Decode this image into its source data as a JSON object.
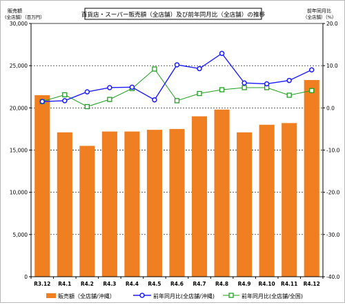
{
  "chart_data": {
    "type": "bar+line",
    "title": "百貨店・スーパー販売額（全店舗）及び前年同月比（全店舗）の推移",
    "left_axis_label_line1": "販売額",
    "left_axis_label_line2": "(全店舗）（百万円）",
    "right_axis_label_line1": "前年同月比",
    "right_axis_label_line2": "（全店舗）（%）",
    "categories": [
      "R3.12",
      "R4.1",
      "R4.2",
      "R4.3",
      "R4.4",
      "R4.5",
      "R4.6",
      "R4.7",
      "R4.8",
      "R4.9",
      "R4.10",
      "R4.11",
      "R4.12"
    ],
    "ylim_left": [
      0,
      30000
    ],
    "yticks_left": [
      "0",
      "5,000",
      "10,000",
      "15,000",
      "20,000",
      "25,000",
      "30,000"
    ],
    "ylim_right": [
      -40,
      20
    ],
    "yticks_right": [
      "-40.0",
      "-30.0",
      "-20.0",
      "-10.0",
      "0.0",
      "10.0",
      "20.0"
    ],
    "grid": "horizontal dashed",
    "legend_position": "bottom",
    "series": [
      {
        "name": "販売額（全店舗/沖縄）",
        "kind": "bar",
        "axis": "left",
        "color": "#f07f22",
        "values": [
          21500,
          17100,
          15500,
          17200,
          17200,
          17400,
          17500,
          19000,
          19800,
          17100,
          18000,
          18200,
          23300
        ]
      },
      {
        "name": "前年同月比(全店舗/沖縄)",
        "kind": "line",
        "axis": "right",
        "color": "#1a1aff",
        "values": [
          1.5,
          1.7,
          3.8,
          4.8,
          4.9,
          1.9,
          10.2,
          9.3,
          12.9,
          5.9,
          5.7,
          6.5,
          9.0
        ]
      },
      {
        "name": "前年同月比(全店舗/全国)",
        "kind": "line",
        "axis": "right",
        "color": "#1f9f1f",
        "values": [
          1.5,
          3.1,
          0.3,
          2.0,
          4.6,
          9.2,
          1.7,
          3.4,
          4.3,
          4.8,
          4.8,
          3.0,
          4.1
        ]
      }
    ]
  }
}
